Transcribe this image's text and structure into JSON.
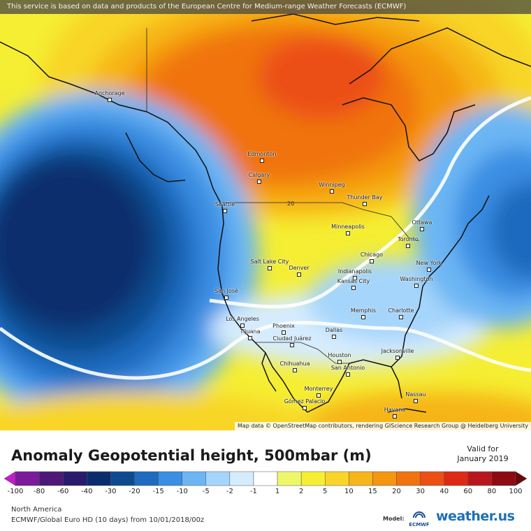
{
  "attribution_top": "This service is based on data and products of the European Centre for Medium-range Weather Forecasts (ECMWF)",
  "attribution_bottom": "Map data © OpenStreetMap contributors, rendering GIScience Research Group @ Heidelberg University",
  "title": "Anomaly Geopotential height, 500mbar (m)",
  "valid_label": "Valid for",
  "valid_date": "January 2019",
  "region": "North America",
  "model_run": "ECMWF/Global Euro HD (10 days) from 10/01/2018/00z",
  "model_label": "Model:",
  "ecmwf_logo_text": "ECMWF",
  "brand_logo_text": "weather.us",
  "contour_label": "20",
  "cities": [
    {
      "name": "Anchorage"
    },
    {
      "name": "Edmonton"
    },
    {
      "name": "Calgary"
    },
    {
      "name": "Winnipeg"
    },
    {
      "name": "Thunder Bay"
    },
    {
      "name": "Seattle"
    },
    {
      "name": "Minneapolis"
    },
    {
      "name": "Ottawa"
    },
    {
      "name": "Toronto"
    },
    {
      "name": "Salt Lake City"
    },
    {
      "name": "Denver"
    },
    {
      "name": "Chicago"
    },
    {
      "name": "New York"
    },
    {
      "name": "Indianapolis"
    },
    {
      "name": "Kansas City"
    },
    {
      "name": "Washington"
    },
    {
      "name": "San José"
    },
    {
      "name": "Memphis"
    },
    {
      "name": "Charlotte"
    },
    {
      "name": "Los Angeles"
    },
    {
      "name": "Phoenix"
    },
    {
      "name": "Dallas"
    },
    {
      "name": "Tijuana"
    },
    {
      "name": "Ciudad Juárez"
    },
    {
      "name": "Jacksonville"
    },
    {
      "name": "Houston"
    },
    {
      "name": "Chihuahua"
    },
    {
      "name": "San Antonio"
    },
    {
      "name": "Monterrey"
    },
    {
      "name": "Nassau"
    },
    {
      "name": "Gómez Palacio"
    },
    {
      "name": "Havana"
    }
  ],
  "legend": {
    "colors": [
      "#c41bcc",
      "#7b1a9a",
      "#4d1878",
      "#2a1a6e",
      "#0b2d6d",
      "#0d4b8e",
      "#1e6bbf",
      "#3a8ee3",
      "#6cb6f4",
      "#a6d5fb",
      "#d6ecfe",
      "#ffffff",
      "#eef76a",
      "#f5ee32",
      "#f8d528",
      "#f6b519",
      "#f49611",
      "#f07310",
      "#ec4f13",
      "#dd2a14",
      "#b8161c",
      "#8e0b12",
      "#6a0808"
    ],
    "ticks": [
      "-100",
      "-80",
      "-60",
      "-40",
      "-30",
      "-20",
      "-15",
      "-10",
      "-5",
      "-2",
      "-1",
      "1",
      "2",
      "5",
      "10",
      "15",
      "20",
      "30",
      "40",
      "60",
      "80",
      "100"
    ]
  }
}
